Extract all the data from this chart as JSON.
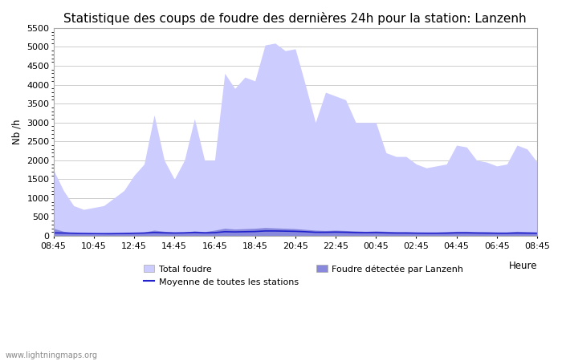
{
  "title": "Statistique des coups de foudre des dernières 24h pour la station: Lanzenh",
  "xlabel": "Heure",
  "ylabel": "Nb /h",
  "ylim": [
    0,
    5500
  ],
  "yticks": [
    0,
    500,
    1000,
    1500,
    2000,
    2500,
    3000,
    3500,
    4000,
    4500,
    5000,
    5500
  ],
  "xtick_labels": [
    "08:45",
    "10:45",
    "12:45",
    "14:45",
    "16:45",
    "18:45",
    "20:45",
    "22:45",
    "00:45",
    "02:45",
    "04:45",
    "06:45",
    "08:45"
  ],
  "watermark": "www.lightningmaps.org",
  "legend_items": [
    {
      "label": "Total foudre",
      "color": "#ccccff",
      "type": "fill"
    },
    {
      "label": "Moyenne de toutes les stations",
      "color": "#2222cc",
      "type": "line"
    },
    {
      "label": "Foudre détectée par Lanzenh",
      "color": "#8888dd",
      "type": "fill"
    }
  ],
  "total_foudre": [
    1750,
    1200,
    800,
    700,
    750,
    800,
    1000,
    1200,
    1600,
    1900,
    3200,
    2000,
    1500,
    2000,
    3100,
    2000,
    2000,
    4300,
    3900,
    4200,
    4100,
    5050,
    5100,
    4900,
    4950,
    4000,
    3000,
    3800,
    3700,
    3600,
    3000,
    3000,
    3000,
    2200,
    2100,
    2100,
    1900,
    1800,
    1850,
    1900,
    2400,
    2350,
    2000,
    1950,
    1850,
    1900,
    2400,
    2300,
    1950
  ],
  "local_foudre": [
    200,
    120,
    80,
    60,
    50,
    50,
    60,
    70,
    90,
    100,
    150,
    120,
    100,
    100,
    130,
    110,
    150,
    200,
    180,
    190,
    200,
    220,
    210,
    200,
    190,
    170,
    150,
    140,
    150,
    140,
    130,
    120,
    130,
    120,
    110,
    110,
    100,
    100,
    100,
    110,
    120,
    120,
    110,
    110,
    100,
    100,
    120,
    110,
    100
  ],
  "moyenne": [
    80,
    75,
    70,
    65,
    60,
    58,
    60,
    65,
    70,
    75,
    90,
    80,
    75,
    80,
    90,
    80,
    85,
    110,
    105,
    110,
    115,
    130,
    130,
    125,
    120,
    110,
    95,
    95,
    100,
    95,
    88,
    85,
    88,
    80,
    75,
    75,
    72,
    70,
    70,
    72,
    80,
    80,
    75,
    72,
    70,
    70,
    75,
    72,
    70
  ],
  "background_color": "#ffffff",
  "plot_bg_color": "#ffffff",
  "grid_color": "#cccccc",
  "fill_total_color": "#ccccff",
  "fill_local_color": "#8888dd",
  "line_moyenne_color": "#2222cc",
  "title_fontsize": 11,
  "axis_fontsize": 8.5,
  "tick_fontsize": 8,
  "fig_width": 7.0,
  "fig_height": 4.5,
  "dpi": 100
}
